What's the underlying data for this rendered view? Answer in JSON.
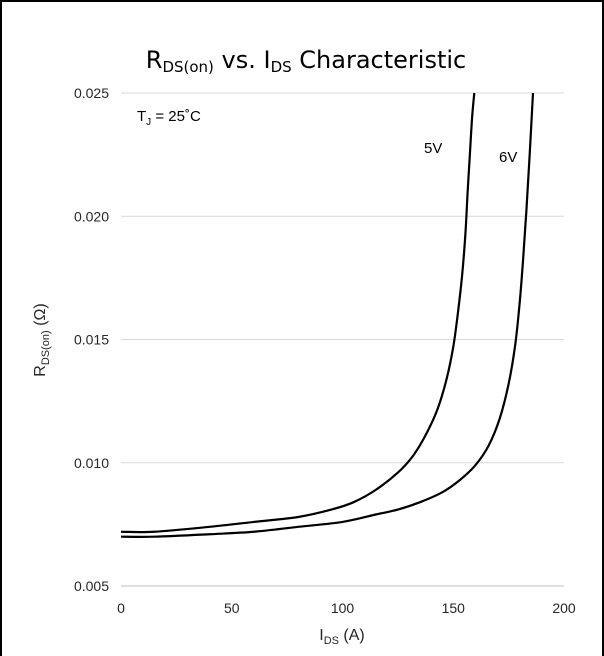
{
  "chart_data": {
    "type": "line",
    "title": {
      "main": "R",
      "sub": "DS(on)",
      "mid": " vs. I",
      "sub2": "DS",
      "end": " Characteristic"
    },
    "xlabel": {
      "main": "I",
      "sub": "DS",
      "end": " (A)"
    },
    "ylabel": {
      "main": "R",
      "sub": "DS(on)",
      "end": " (Ω)"
    },
    "xlim": [
      0,
      200
    ],
    "ylim": [
      0.005,
      0.025
    ],
    "xticks": [
      0,
      50,
      100,
      150,
      200
    ],
    "xtick_labels": [
      "0",
      "50",
      "100",
      "150",
      "200"
    ],
    "yticks": [
      0.005,
      0.01,
      0.015,
      0.02,
      0.025
    ],
    "ytick_labels": [
      "0.005",
      "0.010",
      "0.015",
      "0.020",
      "0.025"
    ],
    "grid": "horizontal",
    "annotation": {
      "main": "T",
      "sub": "J",
      "end": " = 25˚C"
    },
    "series": [
      {
        "name": "5V",
        "x": [
          0,
          15,
          40,
          60,
          80,
          95,
          105,
          115,
          125,
          132,
          138,
          143,
          147,
          150,
          152,
          154,
          155.5,
          156.5,
          157.5,
          158.5,
          159.5
        ],
        "y": [
          0.0072,
          0.0072,
          0.0074,
          0.0076,
          0.0078,
          0.0081,
          0.0084,
          0.0089,
          0.0096,
          0.0103,
          0.0112,
          0.0122,
          0.0134,
          0.0147,
          0.016,
          0.0176,
          0.0193,
          0.021,
          0.0225,
          0.024,
          0.025
        ]
      },
      {
        "name": "6V",
        "x": [
          0,
          15,
          40,
          60,
          80,
          100,
          115,
          125,
          135,
          145,
          153,
          160,
          166,
          171,
          175,
          178,
          180,
          181.5,
          183,
          184.5,
          186
        ],
        "y": [
          0.007,
          0.007,
          0.0071,
          0.0072,
          0.0074,
          0.0076,
          0.0079,
          0.0081,
          0.0084,
          0.0088,
          0.0093,
          0.0099,
          0.0107,
          0.0118,
          0.0132,
          0.0148,
          0.0165,
          0.0182,
          0.0202,
          0.0225,
          0.025
        ]
      }
    ],
    "series_labels": [
      "5V",
      "6V"
    ]
  }
}
